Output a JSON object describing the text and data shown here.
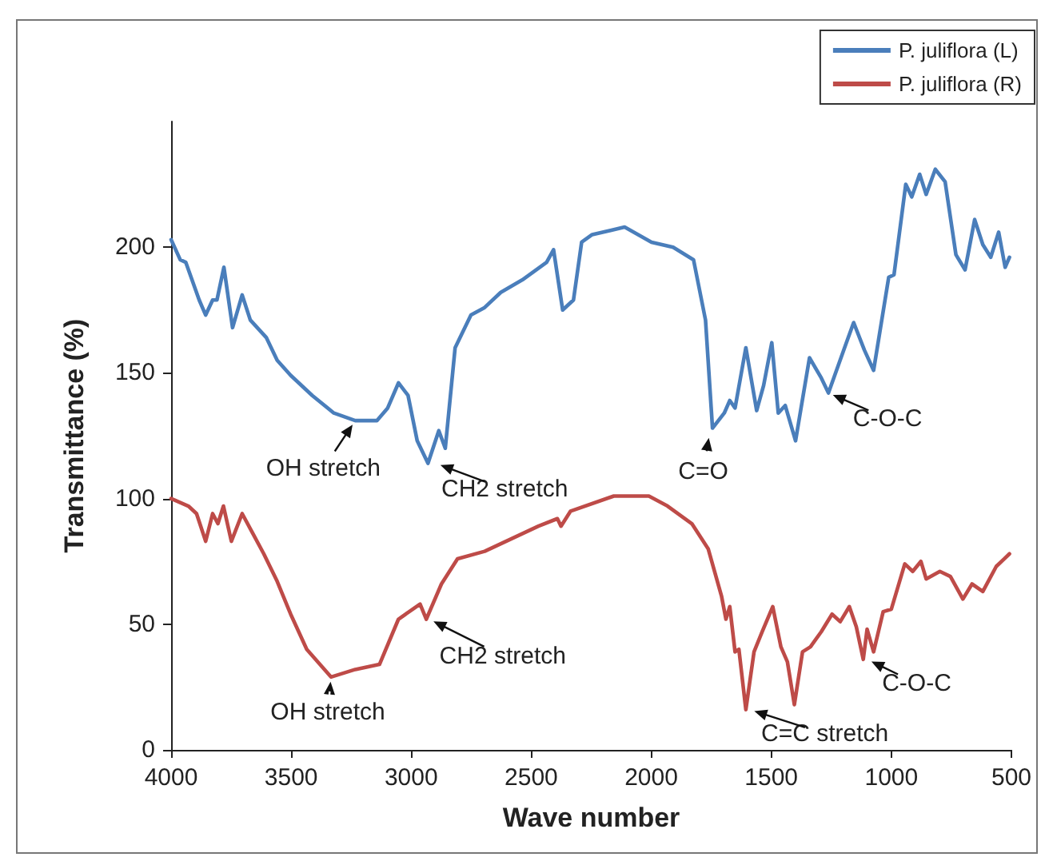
{
  "chart_data": {
    "type": "line",
    "xlabel": "Wave number",
    "ylabel": "Transmittance (%)",
    "xlim": [
      4000,
      500
    ],
    "xticks": [
      4000,
      3500,
      3000,
      2500,
      2000,
      1500,
      1000,
      500
    ],
    "ylim": [
      0,
      250
    ],
    "yticks": [
      0,
      50,
      100,
      150,
      200
    ],
    "grid": false,
    "legend": "top right",
    "marker": "none",
    "line_style": "solid",
    "series": [
      {
        "name": "P. juliflora (L)",
        "color": "#4a7ebb",
        "x": [
          4000,
          3962,
          3939,
          3883,
          3856,
          3827,
          3809,
          3780,
          3744,
          3704,
          3670,
          3603,
          3558,
          3502,
          3412,
          3322,
          3233,
          3143,
          3098,
          3053,
          3013,
          2975,
          2930,
          2885,
          2858,
          2817,
          2751,
          2694,
          2627,
          2537,
          2436,
          2407,
          2369,
          2324,
          2290,
          2246,
          2156,
          2111,
          1999,
          1909,
          1824,
          1774,
          1745,
          1696,
          1673,
          1651,
          1606,
          1561,
          1532,
          1498,
          1471,
          1442,
          1399,
          1341,
          1292,
          1262,
          1191,
          1157,
          1112,
          1074,
          1011,
          989,
          940,
          915,
          882,
          855,
          817,
          776,
          731,
          693,
          653,
          619,
          586,
          553,
          526,
          508
        ],
        "values": [
          203,
          195,
          194,
          179,
          173,
          179,
          179,
          192,
          168,
          181,
          171,
          164,
          155,
          149,
          141,
          134,
          131,
          131,
          136,
          146,
          141,
          123,
          114,
          127,
          120,
          160,
          173,
          176,
          182,
          187,
          194,
          199,
          175,
          179,
          202,
          205,
          207,
          208,
          202,
          200,
          195,
          171,
          128,
          134,
          139,
          136,
          160,
          135,
          145,
          162,
          134,
          137,
          123,
          156,
          148,
          142,
          161,
          170,
          159,
          151,
          188,
          189,
          225,
          220,
          229,
          221,
          231,
          226,
          197,
          191,
          211,
          201,
          196,
          206,
          192,
          196
        ]
      },
      {
        "name": "P. juliflora (R)",
        "color": "#be4b48",
        "x": [
          4000,
          3928,
          3894,
          3856,
          3827,
          3805,
          3782,
          3749,
          3704,
          3659,
          3614,
          3558,
          3502,
          3435,
          3334,
          3233,
          3132,
          3053,
          2963,
          2937,
          2874,
          2807,
          2694,
          2582,
          2470,
          2391,
          2376,
          2336,
          2156,
          2134,
          2010,
          1932,
          1831,
          1763,
          1707,
          1689,
          1673,
          1651,
          1635,
          1606,
          1572,
          1538,
          1494,
          1460,
          1433,
          1404,
          1370,
          1337,
          1292,
          1247,
          1213,
          1175,
          1146,
          1117,
          1101,
          1074,
          1034,
          1000,
          944,
          911,
          877,
          855,
          798,
          754,
          702,
          664,
          619,
          563,
          530,
          508
        ],
        "values": [
          100,
          97,
          94,
          83,
          94,
          90,
          97,
          83,
          94,
          86,
          78,
          67,
          54,
          40,
          29,
          32,
          34,
          52,
          58,
          52,
          66,
          76,
          79,
          84,
          89,
          92,
          89,
          95,
          101,
          101,
          101,
          97,
          90,
          80,
          61,
          52,
          57,
          39,
          40,
          16,
          39,
          47,
          57,
          41,
          35,
          18,
          39,
          41,
          47,
          54,
          51,
          57,
          49,
          36,
          48,
          39,
          55,
          56,
          74,
          71,
          75,
          68,
          71,
          69,
          60,
          66,
          63,
          73,
          76,
          78
        ]
      }
    ],
    "annotations": [
      {
        "text": "OH stretch",
        "x": 3233,
        "y": 131
      },
      {
        "text": "CH2 stretch",
        "x": 2897,
        "y": 114
      },
      {
        "text": "C=O",
        "x": 1757,
        "y": 126
      },
      {
        "text": "C-O-C",
        "x": 1262,
        "y": 142
      },
      {
        "text": "OH stretch",
        "x": 3334,
        "y": 29
      },
      {
        "text": "CH2 stretch",
        "x": 2925,
        "y": 52
      },
      {
        "text": "C=C stretch",
        "x": 1590,
        "y": 16
      },
      {
        "text": "C-O-C",
        "x": 1101,
        "y": 36
      }
    ]
  }
}
